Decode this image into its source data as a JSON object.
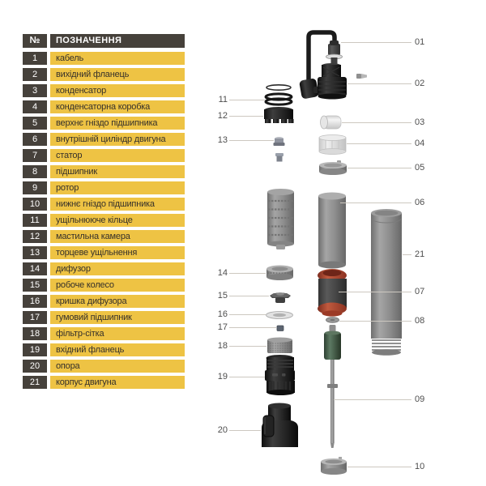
{
  "colors": {
    "cell_dark": "#46413b",
    "cell_yellow": "#eec344",
    "table_text": "#35302a",
    "header_text": "#ffffff",
    "callout_line": "#cdc8c0",
    "callout_text": "#4d4d4d",
    "stator_ring_red": "#a8402a",
    "rotor_green": "#41543f",
    "metal_gray": "#8e8e8e",
    "part_black": "#1a1a1a"
  },
  "table": {
    "header": {
      "num": "№",
      "name": "ПОЗНАЧЕННЯ"
    },
    "rows": [
      {
        "num": "1",
        "label": "кабель"
      },
      {
        "num": "2",
        "label": "вихідний фланець"
      },
      {
        "num": "3",
        "label": "конденсатор"
      },
      {
        "num": "4",
        "label": "конденсаторна коробка"
      },
      {
        "num": "5",
        "label": "верхнє гніздо підшипника"
      },
      {
        "num": "6",
        "label": "внутрішній циліндр двигуна"
      },
      {
        "num": "7",
        "label": "статор"
      },
      {
        "num": "8",
        "label": "підшипник"
      },
      {
        "num": "9",
        "label": "ротор"
      },
      {
        "num": "10",
        "label": "нижнє гніздо підшипника"
      },
      {
        "num": "11",
        "label": "ущільнююче кільце"
      },
      {
        "num": "12",
        "label": "мастильна камера"
      },
      {
        "num": "13",
        "label": "торцеве ущільнення"
      },
      {
        "num": "14",
        "label": "дифузор"
      },
      {
        "num": "15",
        "label": "робоче колесо"
      },
      {
        "num": "16",
        "label": "кришка дифузора"
      },
      {
        "num": "17",
        "label": "гумовий підшипник"
      },
      {
        "num": "18",
        "label": "фільтр-сітка"
      },
      {
        "num": "19",
        "label": "вхідний фланець"
      },
      {
        "num": "20",
        "label": "опора"
      },
      {
        "num": "21",
        "label": "корпус двигуна"
      }
    ]
  },
  "diagram": {
    "callouts": [
      {
        "label": "01",
        "part": "кабель"
      },
      {
        "label": "02",
        "part": "вихідний фланець"
      },
      {
        "label": "03",
        "part": "конденсатор"
      },
      {
        "label": "04",
        "part": "конденсаторна коробка"
      },
      {
        "label": "05",
        "part": "верхнє гніздо підшипника"
      },
      {
        "label": "06",
        "part": "внутрішній циліндр двигуна"
      },
      {
        "label": "21",
        "part": "корпус двигуна"
      },
      {
        "label": "07",
        "part": "статор"
      },
      {
        "label": "08",
        "part": "підшипник"
      },
      {
        "label": "09",
        "part": "ротор"
      },
      {
        "label": "10",
        "part": "нижнє гніздо підшипника"
      },
      {
        "label": "11",
        "part": "ущільнююче кільце"
      },
      {
        "label": "12",
        "part": "мастильна камера"
      },
      {
        "label": "13",
        "part": "торцеве ущільнення"
      },
      {
        "label": "14",
        "part": "дифузор"
      },
      {
        "label": "15",
        "part": "робоче колесо"
      },
      {
        "label": "16",
        "part": "кришка дифузора"
      },
      {
        "label": "17",
        "part": "гумовий підшипник"
      },
      {
        "label": "18",
        "part": "фільтр-сітка"
      },
      {
        "label": "19",
        "part": "вхідний фланець"
      },
      {
        "label": "20",
        "part": "опора"
      }
    ]
  }
}
